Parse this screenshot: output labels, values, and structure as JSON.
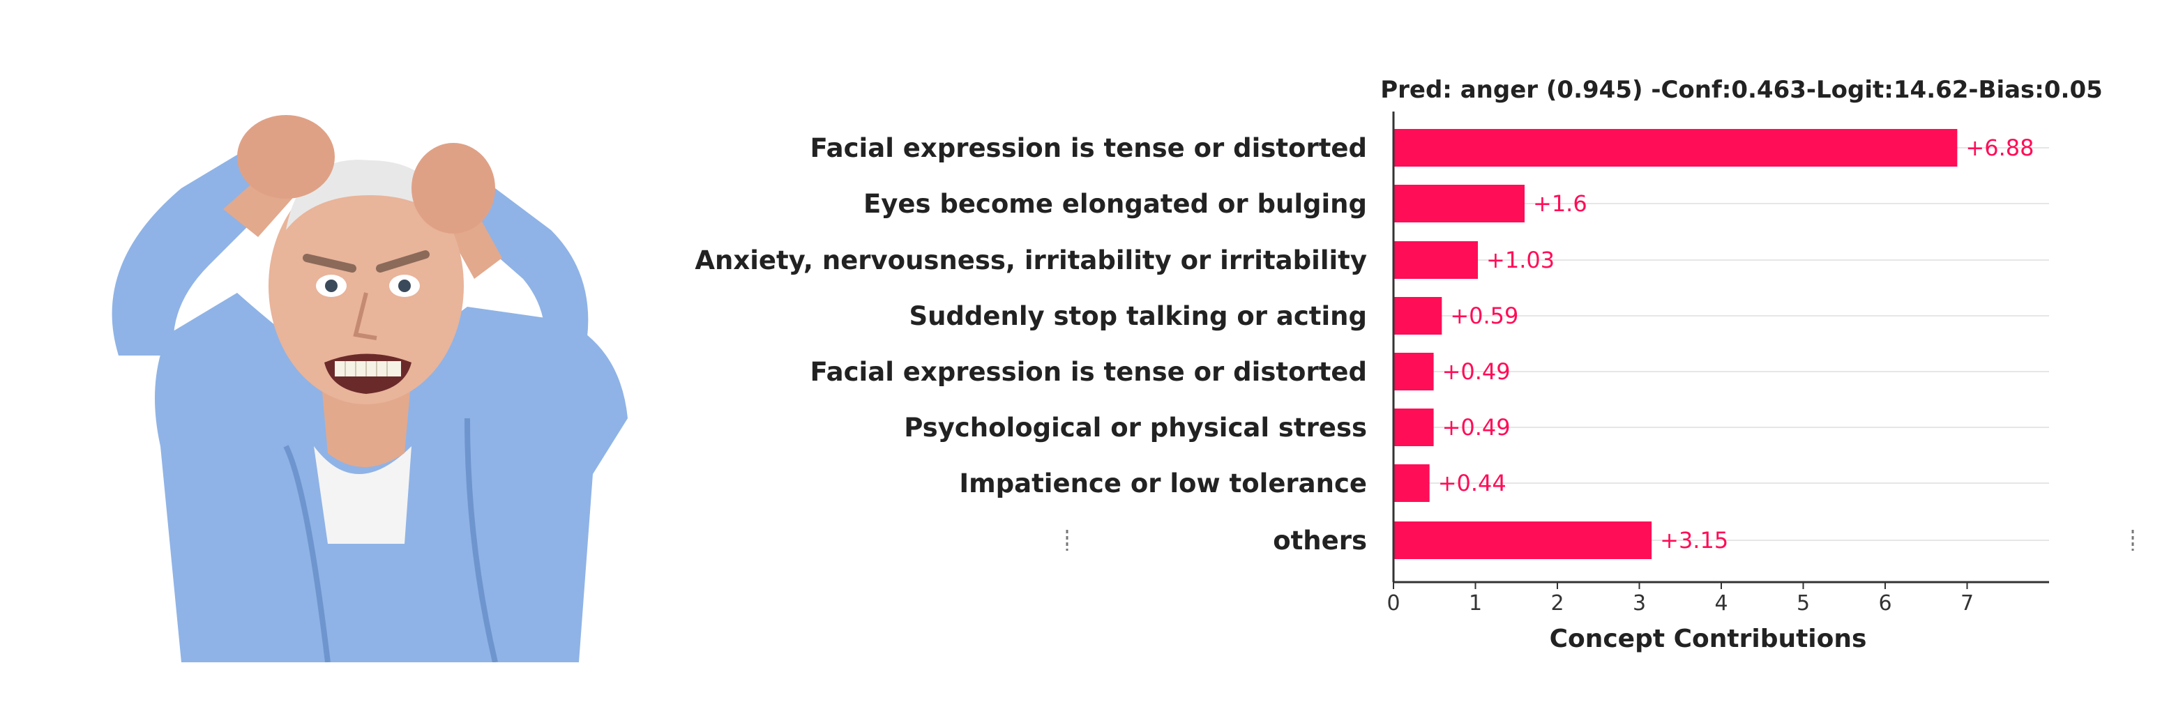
{
  "chart_data": {
    "type": "bar",
    "orientation": "horizontal",
    "title": "Pred: anger (0.945) -Conf:0.463-Logit:14.62-Bias:0.05",
    "xlabel": "Concept Contributions",
    "ylabel": "",
    "categories": [
      "Facial expression is tense or distorted",
      "Eyes become elongated or bulging",
      "Anxiety, nervousness, irritability or irritability",
      "Suddenly stop talking or acting",
      "Facial expression is tense or distorted",
      "Psychological or physical stress",
      "Impatience or low tolerance",
      "others"
    ],
    "values": [
      6.88,
      1.6,
      1.03,
      0.59,
      0.49,
      0.49,
      0.44,
      3.15
    ],
    "value_labels": [
      "+6.88",
      "+1.6",
      "+1.03",
      "+0.59",
      "+0.49",
      "+0.49",
      "+0.44",
      "+3.15"
    ],
    "xlim": [
      0,
      8
    ],
    "xticks": [
      0,
      1,
      2,
      3,
      4,
      5,
      6,
      7
    ],
    "grid": true,
    "legend": "none",
    "bar_color": "#ff0d57"
  },
  "image": {
    "icon": "angry-elderly-man-photo"
  }
}
